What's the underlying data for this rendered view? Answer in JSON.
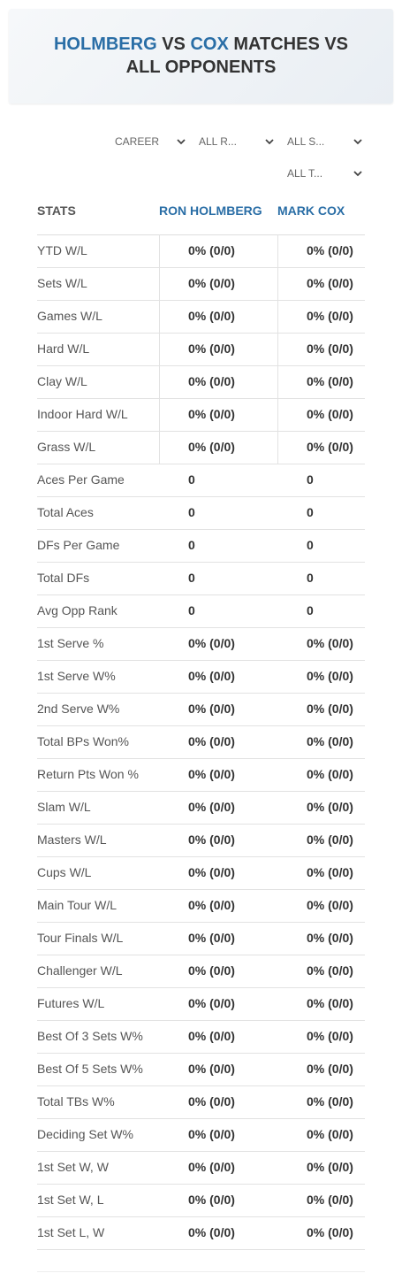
{
  "header": {
    "title": {
      "player1": "HOLMBERG",
      "vs": "VS",
      "player2": "COX",
      "rest": "MATCHES VS ALL OPPONENTS"
    }
  },
  "filters": [
    "CAREER",
    "ALL R...",
    "ALL S...",
    "ALL T..."
  ],
  "table": {
    "columns": [
      "STATS",
      "RON HOLMBERG",
      "MARK COX"
    ],
    "rows": [
      [
        "YTD W/L",
        "0% (0/0)",
        "0% (0/0)"
      ],
      [
        "Sets W/L",
        "0% (0/0)",
        "0% (0/0)"
      ],
      [
        "Games W/L",
        "0% (0/0)",
        "0% (0/0)"
      ],
      [
        "Hard W/L",
        "0% (0/0)",
        "0% (0/0)"
      ],
      [
        "Clay W/L",
        "0% (0/0)",
        "0% (0/0)"
      ],
      [
        "Indoor Hard W/L",
        "0% (0/0)",
        "0% (0/0)"
      ],
      [
        "Grass W/L",
        "0% (0/0)",
        "0% (0/0)"
      ],
      [
        "Aces Per Game",
        "0",
        "0"
      ],
      [
        "Total Aces",
        "0",
        "0"
      ],
      [
        "DFs Per Game",
        "0",
        "0"
      ],
      [
        "Total DFs",
        "0",
        "0"
      ],
      [
        "Avg Opp Rank",
        "0",
        "0"
      ],
      [
        "1st Serve %",
        "0% (0/0)",
        "0% (0/0)"
      ],
      [
        "1st Serve W%",
        "0% (0/0)",
        "0% (0/0)"
      ],
      [
        "2nd Serve W%",
        "0% (0/0)",
        "0% (0/0)"
      ],
      [
        "Total BPs Won%",
        "0% (0/0)",
        "0% (0/0)"
      ],
      [
        "Return Pts Won %",
        "0% (0/0)",
        "0% (0/0)"
      ],
      [
        "Slam W/L",
        "0% (0/0)",
        "0% (0/0)"
      ],
      [
        "Masters W/L",
        "0% (0/0)",
        "0% (0/0)"
      ],
      [
        "Cups W/L",
        "0% (0/0)",
        "0% (0/0)"
      ],
      [
        "Main Tour W/L",
        "0% (0/0)",
        "0% (0/0)"
      ],
      [
        "Tour Finals W/L",
        "0% (0/0)",
        "0% (0/0)"
      ],
      [
        "Challenger W/L",
        "0% (0/0)",
        "0% (0/0)"
      ],
      [
        "Futures W/L",
        "0% (0/0)",
        "0% (0/0)"
      ],
      [
        "Best Of 3 Sets W%",
        "0% (0/0)",
        "0% (0/0)"
      ],
      [
        "Best Of 5 Sets W%",
        "0% (0/0)",
        "0% (0/0)"
      ],
      [
        "Total TBs W%",
        "0% (0/0)",
        "0% (0/0)"
      ],
      [
        "Deciding Set W%",
        "0% (0/0)",
        "0% (0/0)"
      ],
      [
        "1st Set W, W",
        "0% (0/0)",
        "0% (0/0)"
      ],
      [
        "1st Set W, L",
        "0% (0/0)",
        "0% (0/0)"
      ],
      [
        "1st Set L, W",
        "0% (0/0)",
        "0% (0/0)"
      ]
    ]
  }
}
